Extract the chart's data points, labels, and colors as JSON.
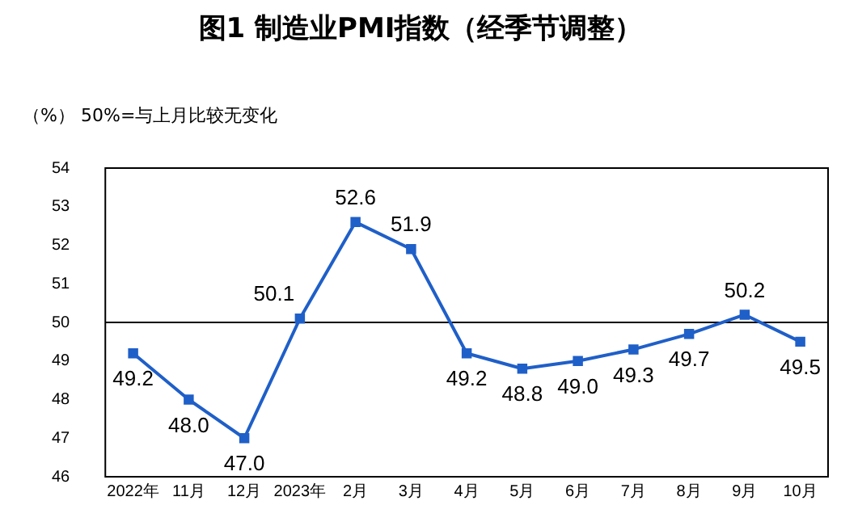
{
  "chart_data": {
    "type": "line",
    "title": "图1 制造业PMI指数（经季节调整）",
    "ylabel": "（%）",
    "annotations": [
      "50%=与上月比较无变化"
    ],
    "categories": [
      "2022年",
      "11月",
      "12月",
      "2023年",
      "2月",
      "3月",
      "4月",
      "5月",
      "6月",
      "7月",
      "8月",
      "9月",
      "10月"
    ],
    "series": [
      {
        "color": "#1f5fc8",
        "values": [
          49.2,
          48.0,
          47.0,
          50.1,
          52.6,
          51.9,
          49.2,
          48.8,
          49.0,
          49.3,
          49.7,
          50.2,
          49.5
        ],
        "value_labels": [
          "49.2",
          "48.0",
          "47.0",
          "50.1",
          "52.6",
          "51.9",
          "49.2",
          "48.8",
          "49.0",
          "49.3",
          "49.7",
          "50.2",
          "49.5"
        ]
      }
    ],
    "ylim": [
      46,
      54
    ],
    "yticks": [
      46,
      47,
      48,
      49,
      50,
      51,
      52,
      53,
      54
    ],
    "ref_lines": [
      {
        "axis": "y",
        "value": 50,
        "color": "#000000"
      }
    ],
    "marker": "square",
    "line_style": "solid",
    "grid": false,
    "legend": false
  }
}
